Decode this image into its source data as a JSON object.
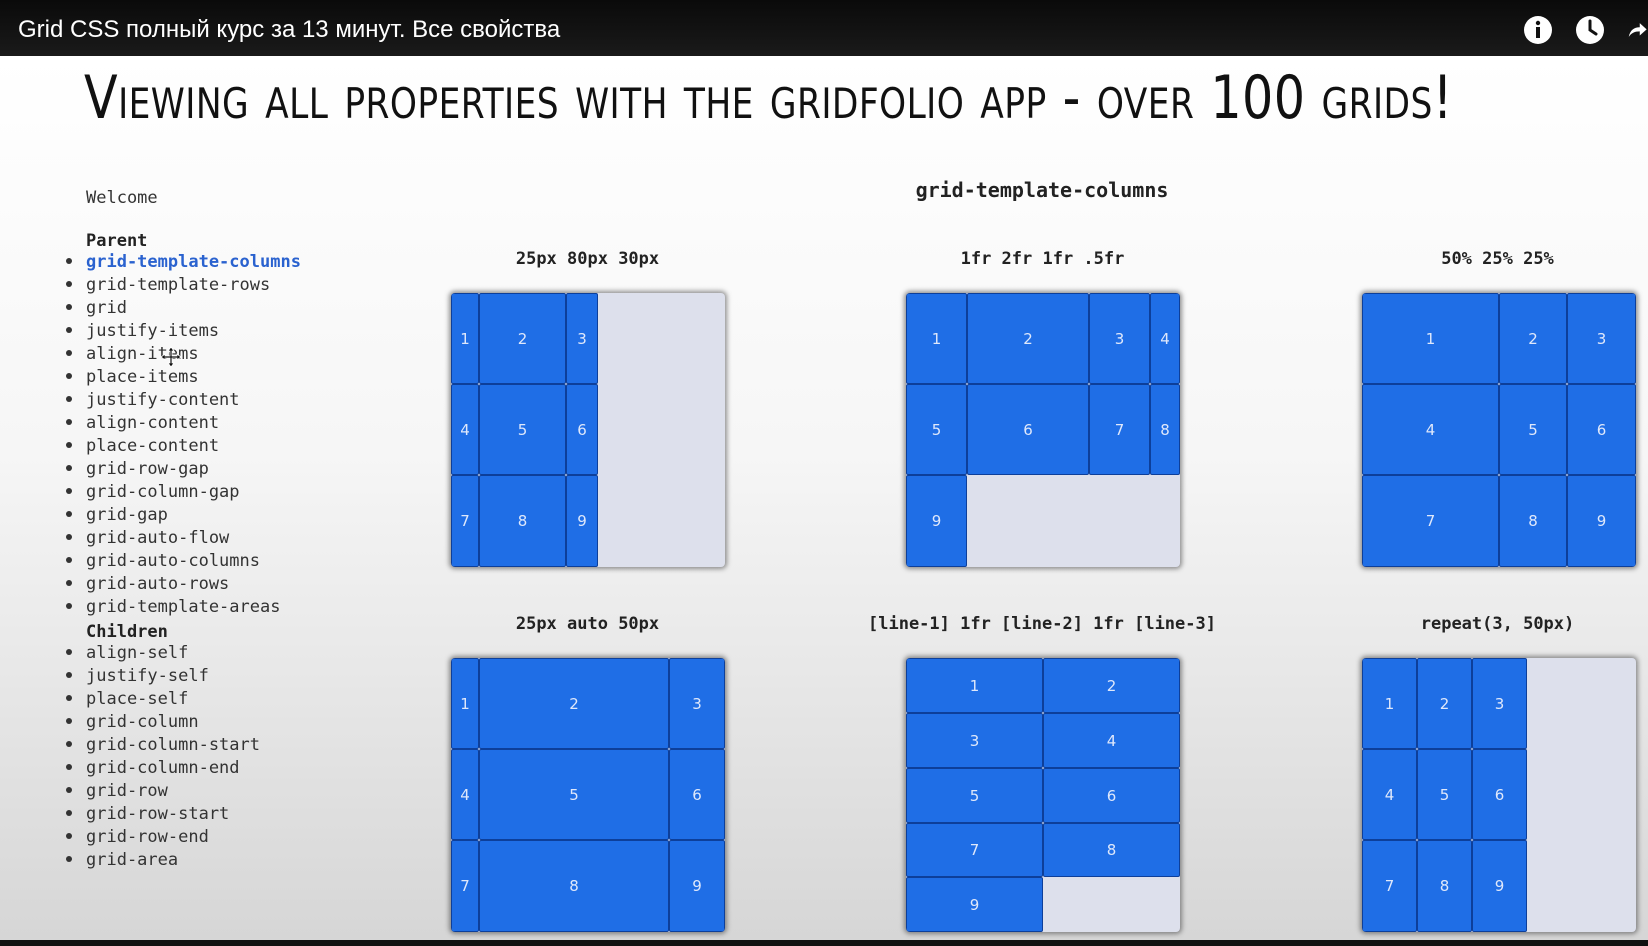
{
  "video": {
    "title": "Grid CSS полный курс за 13 минут. Все свойства",
    "icons": [
      "info-icon",
      "watch-later-icon",
      "share-icon"
    ]
  },
  "slide": {
    "headline": "Viewing all properties with the gridfolio app - over 100 grids!",
    "sidebar": {
      "welcome": "Welcome",
      "parent_heading": "Parent",
      "parent_items": [
        "grid-template-columns",
        "grid-template-rows",
        "grid",
        "justify-items",
        "align-items",
        "place-items",
        "justify-content",
        "align-content",
        "place-content",
        "grid-row-gap",
        "grid-column-gap",
        "grid-gap",
        "grid-auto-flow",
        "grid-auto-columns",
        "grid-auto-rows",
        "grid-template-areas"
      ],
      "active_item": "grid-template-columns",
      "children_heading": "Children",
      "children_items": [
        "align-self",
        "justify-self",
        "place-self",
        "grid-column",
        "grid-column-start",
        "grid-column-end",
        "grid-row",
        "grid-row-start",
        "grid-row-end",
        "grid-area"
      ]
    },
    "section_title": "grid-template-columns",
    "grids": [
      {
        "label": "25px 80px 30px",
        "cells": [
          "1",
          "2",
          "3",
          "4",
          "5",
          "6",
          "7",
          "8",
          "9"
        ]
      },
      {
        "label": "1fr 2fr 1fr .5fr",
        "cells": [
          "1",
          "2",
          "3",
          "4",
          "5",
          "6",
          "7",
          "8",
          "9"
        ]
      },
      {
        "label": "50% 25% 25%",
        "cells": [
          "1",
          "2",
          "3",
          "4",
          "5",
          "6",
          "7",
          "8",
          "9"
        ]
      },
      {
        "label": "25px auto 50px",
        "cells": [
          "1",
          "2",
          "3",
          "4",
          "5",
          "6",
          "7",
          "8",
          "9"
        ]
      },
      {
        "label": "[line-1] 1fr [line-2] 1fr [line-3]",
        "cells": [
          "1",
          "2",
          "3",
          "4",
          "5",
          "6",
          "7",
          "8",
          "9"
        ]
      },
      {
        "label": "repeat(3, 50px)",
        "cells": [
          "1",
          "2",
          "3",
          "4",
          "5",
          "6",
          "7",
          "8",
          "9"
        ]
      }
    ],
    "colors": {
      "cell": "#1f6ee6",
      "panel": "#dde0ec",
      "active_link": "#2a62cf"
    }
  }
}
